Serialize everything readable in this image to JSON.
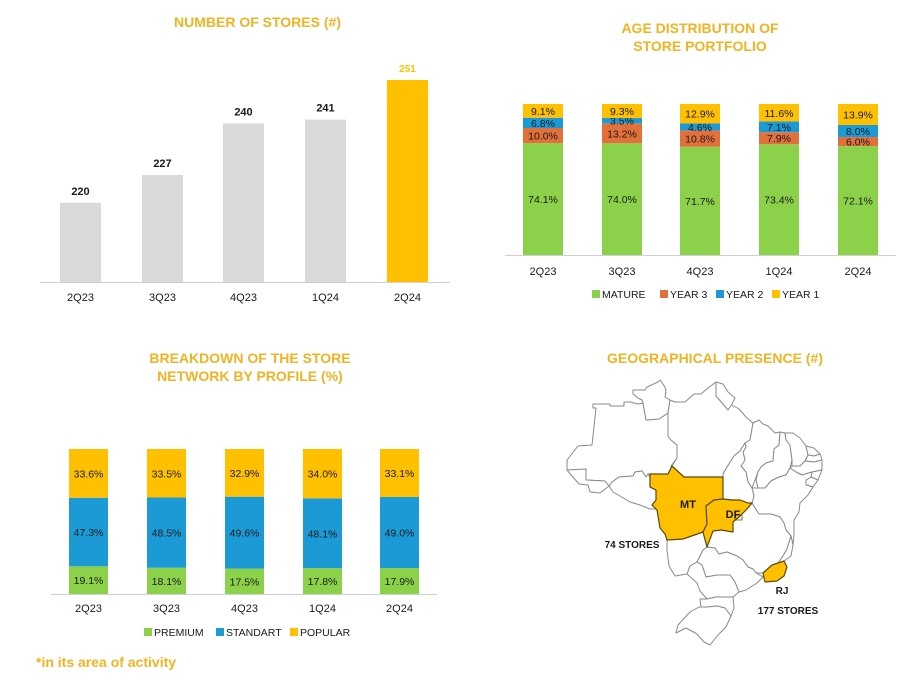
{
  "colors": {
    "title": "#F0B323",
    "highlight": "#FFC000",
    "gray": "#D9D9D9",
    "mature": "#8CD14A",
    "year3": "#E2703A",
    "year2": "#1B9AD6",
    "year1": "#FFC000",
    "premium": "#8CD14A",
    "standart": "#1B9AD6",
    "popular": "#FFC000",
    "map_fill": "#FFC000"
  },
  "chart_data": [
    {
      "type": "bar",
      "title": "NUMBER OF STORES (#)",
      "categories": [
        "2Q23",
        "3Q23",
        "4Q23",
        "1Q24",
        "2Q24"
      ],
      "values": [
        220,
        227,
        240,
        241,
        251
      ],
      "value_labels": [
        "220",
        "227",
        "240",
        "241",
        "251"
      ],
      "highlight_index": 4,
      "ylim": [
        200,
        255
      ],
      "xlabel": "",
      "ylabel": "",
      "grid": false
    },
    {
      "type": "bar",
      "stacked": true,
      "title_lines": [
        "AGE DISTRIBUTION OF",
        "STORE PORTFOLIO"
      ],
      "categories": [
        "2Q23",
        "3Q23",
        "4Q23",
        "1Q24",
        "2Q24"
      ],
      "series": [
        {
          "name": "MATURE",
          "values": [
            74.1,
            74.0,
            71.7,
            73.4,
            72.1
          ],
          "labels": [
            "74.1%",
            "74.0%",
            "71.7%",
            "73.4%",
            "72.1%"
          ]
        },
        {
          "name": "YEAR 3",
          "values": [
            10.0,
            13.2,
            10.8,
            7.9,
            6.0
          ],
          "labels": [
            "10.0%",
            "13.2%",
            "10.8%",
            "7.9%",
            "6.0%"
          ]
        },
        {
          "name": "YEAR 2",
          "values": [
            6.8,
            3.5,
            4.6,
            7.1,
            8.0
          ],
          "labels": [
            "6.8%",
            "3.5%",
            "4.6%",
            "7.1%",
            "8.0%"
          ]
        },
        {
          "name": "YEAR 1",
          "values": [
            9.1,
            9.3,
            12.9,
            11.6,
            13.9
          ],
          "labels": [
            "9.1%",
            "9.3%",
            "12.9%",
            "11.6%",
            "13.9%"
          ]
        }
      ],
      "ylim": [
        0,
        100
      ],
      "legend": "bottom",
      "grid": false
    },
    {
      "type": "bar",
      "stacked": true,
      "title_lines": [
        "BREAKDOWN OF THE STORE",
        "NETWORK BY PROFILE (%)"
      ],
      "categories": [
        "2Q23",
        "3Q23",
        "4Q23",
        "1Q24",
        "2Q24"
      ],
      "series": [
        {
          "name": "PREMIUM",
          "values": [
            19.1,
            18.1,
            17.5,
            17.8,
            17.9
          ],
          "labels": [
            "19.1%",
            "18.1%",
            "17.5%",
            "17.8%",
            "17.9%"
          ]
        },
        {
          "name": "STANDART",
          "values": [
            47.3,
            48.5,
            49.6,
            48.1,
            49.0
          ],
          "labels": [
            "47.3%",
            "48.5%",
            "49.6%",
            "48.1%",
            "49.0%"
          ]
        },
        {
          "name": "POPULAR",
          "values": [
            33.6,
            33.5,
            32.9,
            34.0,
            33.1
          ],
          "labels": [
            "33.6%",
            "33.5%",
            "32.9%",
            "34.0%",
            "33.1%"
          ]
        }
      ],
      "ylim": [
        0,
        100
      ],
      "legend": "bottom",
      "grid": false
    }
  ],
  "map": {
    "title": "GEOGRAPHICAL PRESENCE (#)",
    "regions": [
      {
        "code": "MT",
        "highlighted": true
      },
      {
        "code": "DF",
        "highlighted": true
      },
      {
        "code": "RJ",
        "highlighted": true
      }
    ],
    "annotations": {
      "west_count": "74 STORES",
      "rj_count": "177 STORES"
    }
  },
  "footnote": "*in its area of activity"
}
